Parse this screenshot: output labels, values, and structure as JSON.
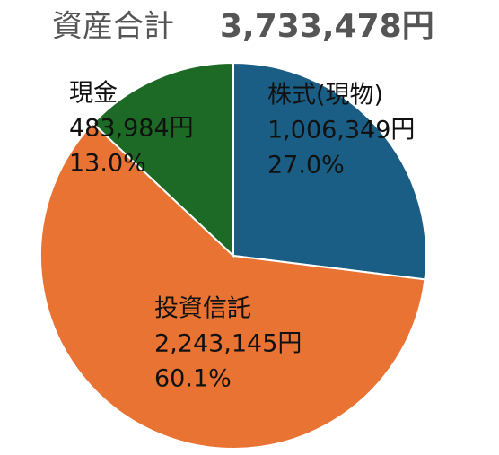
{
  "chart_data": {
    "type": "pie",
    "title": "資産合計",
    "total_label": "3,733,478円",
    "categories": [
      "株式(現物)",
      "投資信託",
      "現金"
    ],
    "values": [
      1006349,
      2243145,
      483984
    ],
    "value_labels": [
      "1,006,349円",
      "2,243,145円",
      "483,984円"
    ],
    "percents": [
      27.0,
      60.1,
      13.0
    ],
    "percent_labels": [
      "27.0%",
      "60.1%",
      "13.0%"
    ],
    "colors": [
      "#1a5e85",
      "#e97332",
      "#1d6a26"
    ]
  }
}
